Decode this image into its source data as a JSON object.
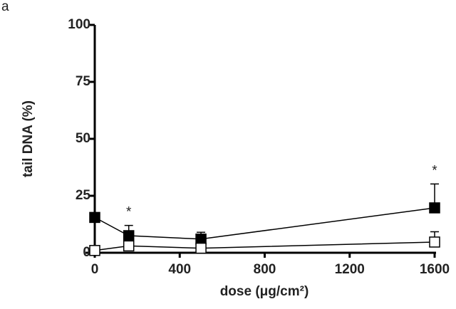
{
  "chart_data": {
    "type": "line",
    "panel_label": "a",
    "xlabel": "dose (μg/cm²)",
    "ylabel": "tail DNA (%)",
    "x": [
      0,
      160,
      500,
      1600
    ],
    "series": [
      {
        "color": "#000000",
        "fill": "#000000",
        "values": [
          15.5,
          7.5,
          6,
          19.7
        ],
        "errors": [
          0,
          4.5,
          3,
          10.5
        ]
      },
      {
        "color": "#000000",
        "fill": "#ffffff",
        "values": [
          1,
          3,
          2,
          4.7
        ],
        "errors": [
          0,
          0,
          0,
          4.5
        ]
      }
    ],
    "annotations": [
      "*",
      "*"
    ],
    "xlim": [
      0,
      1600
    ],
    "xticks": [
      0,
      400,
      800,
      1200,
      1600
    ],
    "ylim": [
      0,
      100
    ],
    "yticks": [
      0,
      25,
      50,
      75,
      100
    ]
  }
}
